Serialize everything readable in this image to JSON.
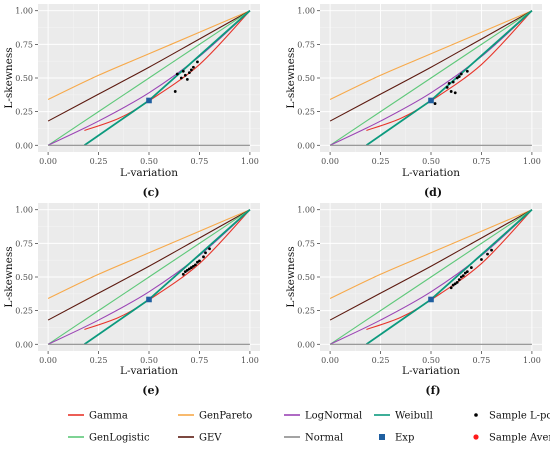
{
  "chart_data": {
    "type": "line",
    "xlabel": "L-variation",
    "ylabel": "L-skewness",
    "xlim": [
      0,
      1
    ],
    "ylim": [
      0,
      1
    ],
    "xticks": [
      "0.00",
      "0.25",
      "0.50",
      "0.75",
      "1.00"
    ],
    "yticks": [
      "0.00",
      "0.25",
      "0.50",
      "0.75",
      "1.00"
    ],
    "grid": true,
    "legend_position": "bottom",
    "legend": [
      {
        "label": "Gamma",
        "kind": "line",
        "color": "#e8352b"
      },
      {
        "label": "GenPareto",
        "kind": "line",
        "color": "#f7a94a"
      },
      {
        "label": "LogNormal",
        "kind": "line",
        "color": "#9b45b5"
      },
      {
        "label": "Weibull",
        "kind": "line",
        "color": "#0c9a7e"
      },
      {
        "label": "Sample L-points",
        "kind": "dot",
        "color": "#000000"
      },
      {
        "label": "GenLogistic",
        "kind": "line",
        "color": "#5ec87a"
      },
      {
        "label": "GEV",
        "kind": "line",
        "color": "#5c1a10"
      },
      {
        "label": "Normal",
        "kind": "line",
        "color": "#8c8c8c"
      },
      {
        "label": "Exp",
        "kind": "square",
        "color": "#1f5fa0"
      },
      {
        "label": "Sample Average",
        "kind": "dot",
        "color": "#ff1a1a"
      }
    ],
    "series": [
      {
        "name": "GenPareto",
        "color": "#f7a94a",
        "x": [
          0,
          0.25,
          0.5,
          0.75,
          1
        ],
        "y": [
          0.34,
          0.52,
          0.68,
          0.84,
          1
        ]
      },
      {
        "name": "GEV",
        "color": "#5c1a10",
        "x": [
          0,
          0.25,
          0.5,
          0.75,
          1
        ],
        "y": [
          0.18,
          0.38,
          0.58,
          0.79,
          1
        ]
      },
      {
        "name": "GenLogistic",
        "color": "#5ec87a",
        "x": [
          0,
          0.25,
          0.5,
          0.75,
          1
        ],
        "y": [
          0,
          0.25,
          0.5,
          0.75,
          1
        ]
      },
      {
        "name": "LogNormal",
        "color": "#9b45b5",
        "x": [
          0,
          0.25,
          0.5,
          0.75,
          1
        ],
        "y": [
          0,
          0.18,
          0.39,
          0.66,
          1
        ]
      },
      {
        "name": "Gamma",
        "color": "#e8352b",
        "x": [
          0.18,
          0.35,
          0.5,
          0.75,
          1
        ],
        "y": [
          0.11,
          0.2,
          0.33,
          0.6,
          1
        ]
      },
      {
        "name": "Weibull",
        "color": "#0c9a7e",
        "x": [
          0.18,
          0.5,
          1
        ],
        "y": [
          0,
          0.333,
          1
        ]
      },
      {
        "name": "Normal",
        "color": "#8c8c8c",
        "x": [
          0,
          1
        ],
        "y": [
          0,
          0
        ]
      }
    ],
    "exp_point": {
      "x": 0.5,
      "y": 0.333
    },
    "panels": [
      {
        "label": "(c)",
        "points": [
          [
            0.63,
            0.4
          ],
          [
            0.64,
            0.53
          ],
          [
            0.66,
            0.5
          ],
          [
            0.67,
            0.55
          ],
          [
            0.68,
            0.52
          ],
          [
            0.69,
            0.49
          ],
          [
            0.7,
            0.54
          ],
          [
            0.71,
            0.56
          ],
          [
            0.72,
            0.58
          ],
          [
            0.74,
            0.62
          ]
        ]
      },
      {
        "label": "(d)",
        "points": [
          [
            0.52,
            0.31
          ],
          [
            0.58,
            0.43
          ],
          [
            0.59,
            0.46
          ],
          [
            0.6,
            0.4
          ],
          [
            0.61,
            0.47
          ],
          [
            0.62,
            0.39
          ],
          [
            0.63,
            0.5
          ],
          [
            0.64,
            0.51
          ],
          [
            0.65,
            0.53
          ],
          [
            0.68,
            0.55
          ]
        ]
      },
      {
        "label": "(e)",
        "points": [
          [
            0.67,
            0.52
          ],
          [
            0.68,
            0.54
          ],
          [
            0.69,
            0.55
          ],
          [
            0.7,
            0.56
          ],
          [
            0.71,
            0.57
          ],
          [
            0.72,
            0.58
          ],
          [
            0.73,
            0.59
          ],
          [
            0.74,
            0.61
          ],
          [
            0.75,
            0.62
          ],
          [
            0.77,
            0.65
          ],
          [
            0.78,
            0.68
          ],
          [
            0.8,
            0.71
          ]
        ]
      },
      {
        "label": "(f)",
        "points": [
          [
            0.6,
            0.42
          ],
          [
            0.61,
            0.44
          ],
          [
            0.62,
            0.45
          ],
          [
            0.63,
            0.46
          ],
          [
            0.64,
            0.48
          ],
          [
            0.65,
            0.5
          ],
          [
            0.66,
            0.51
          ],
          [
            0.67,
            0.53
          ],
          [
            0.68,
            0.54
          ],
          [
            0.7,
            0.57
          ],
          [
            0.75,
            0.63
          ],
          [
            0.78,
            0.67
          ],
          [
            0.8,
            0.7
          ]
        ]
      }
    ]
  }
}
